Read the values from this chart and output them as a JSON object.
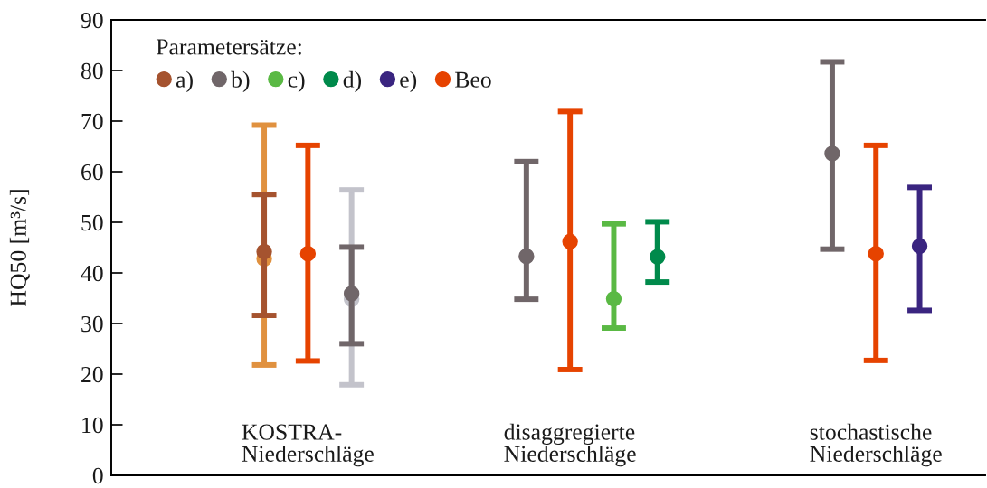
{
  "chart_data": {
    "type": "scatter",
    "ylabel": "HQ50 [m³/s]",
    "legend_title": "Parametersätze:",
    "categories": [
      null,
      null,
      null,
      null,
      "KOSTRA-\nNiederschläge",
      null,
      null,
      null,
      null,
      null,
      "disaggregierte\nNiederschläge",
      null,
      null,
      null,
      null,
      null,
      null,
      "stochastische\nNiederschläge",
      null,
      null
    ],
    "series": [
      {
        "color": "#e0913f",
        "values": [
          null,
          null,
          null,
          42.8,
          null,
          null,
          null,
          null,
          null,
          null,
          null,
          null,
          null,
          null,
          null,
          null,
          null,
          null,
          null,
          null
        ],
        "errors": [
          null,
          null,
          null,
          [
            21.8,
            69.2
          ],
          null,
          null,
          null,
          null,
          null,
          null,
          null,
          null,
          null,
          null,
          null,
          null,
          null,
          null,
          null,
          null
        ]
      },
      {
        "color": "#c3c3cb",
        "values": [
          null,
          null,
          null,
          null,
          null,
          34.8,
          null,
          null,
          null,
          null,
          null,
          null,
          null,
          null,
          null,
          null,
          null,
          null,
          null,
          null
        ],
        "errors": [
          null,
          null,
          null,
          null,
          null,
          [
            17.9,
            56.4
          ],
          null,
          null,
          null,
          null,
          null,
          null,
          null,
          null,
          null,
          null,
          null,
          null,
          null,
          null
        ]
      },
      {
        "name": "a)",
        "color": "#a5532f",
        "values": [
          null,
          null,
          null,
          44.2,
          null,
          null,
          null,
          null,
          null,
          null,
          null,
          null,
          null,
          null,
          null,
          null,
          null,
          null,
          null,
          null
        ],
        "errors": [
          null,
          null,
          null,
          [
            31.6,
            55.5
          ],
          null,
          null,
          null,
          null,
          null,
          null,
          null,
          null,
          null,
          null,
          null,
          null,
          null,
          null,
          null,
          null
        ]
      },
      {
        "name": "b)",
        "color": "#706669",
        "values": [
          null,
          null,
          null,
          null,
          null,
          35.9,
          null,
          null,
          null,
          43.3,
          null,
          null,
          null,
          null,
          null,
          null,
          63.6,
          null,
          null,
          null
        ],
        "errors": [
          null,
          null,
          null,
          null,
          null,
          [
            26.0,
            45.1
          ],
          null,
          null,
          null,
          [
            34.8,
            62.0
          ],
          null,
          null,
          null,
          null,
          null,
          null,
          [
            44.7,
            81.7
          ],
          null,
          null,
          null
        ]
      },
      {
        "name": "c)",
        "color": "#5ab944",
        "values": [
          null,
          null,
          null,
          null,
          null,
          null,
          null,
          null,
          null,
          null,
          null,
          34.9,
          null,
          null,
          null,
          null,
          null,
          null,
          null,
          null
        ],
        "errors": [
          null,
          null,
          null,
          null,
          null,
          null,
          null,
          null,
          null,
          null,
          null,
          [
            29.1,
            49.7
          ],
          null,
          null,
          null,
          null,
          null,
          null,
          null,
          null
        ]
      },
      {
        "name": "d)",
        "color": "#008a4b",
        "values": [
          null,
          null,
          null,
          null,
          null,
          null,
          null,
          null,
          null,
          null,
          null,
          null,
          43.2,
          null,
          null,
          null,
          null,
          null,
          null,
          null
        ],
        "errors": [
          null,
          null,
          null,
          null,
          null,
          null,
          null,
          null,
          null,
          null,
          null,
          null,
          [
            38.2,
            50.1
          ],
          null,
          null,
          null,
          null,
          null,
          null,
          null
        ]
      },
      {
        "name": "e)",
        "color": "#3a2580",
        "values": [
          null,
          null,
          null,
          null,
          null,
          null,
          null,
          null,
          null,
          null,
          null,
          null,
          null,
          null,
          null,
          null,
          null,
          null,
          45.3,
          null
        ],
        "errors": [
          null,
          null,
          null,
          null,
          null,
          null,
          null,
          null,
          null,
          null,
          null,
          null,
          null,
          null,
          null,
          null,
          null,
          null,
          [
            32.6,
            56.9
          ],
          null
        ]
      },
      {
        "name": "Beo",
        "color": "#e64300",
        "values": [
          null,
          null,
          null,
          null,
          43.8,
          null,
          null,
          null,
          null,
          null,
          46.2,
          null,
          null,
          null,
          null,
          null,
          null,
          43.8,
          null,
          null
        ],
        "errors": [
          null,
          null,
          null,
          null,
          [
            22.6,
            65.2
          ],
          null,
          null,
          null,
          null,
          null,
          [
            20.9,
            71.9
          ],
          null,
          null,
          null,
          null,
          null,
          null,
          [
            22.7,
            65.2
          ],
          null,
          null
        ]
      }
    ],
    "ylim": [
      0,
      90
    ],
    "yticks": [
      0,
      10,
      20,
      30,
      40,
      50,
      60,
      70,
      80,
      90
    ],
    "legend": "top left",
    "marker": "circle"
  }
}
